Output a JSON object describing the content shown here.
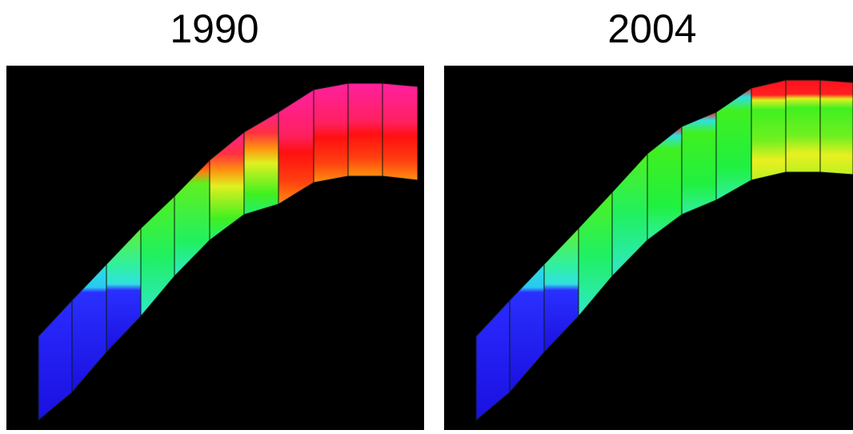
{
  "panels": [
    {
      "title": "1990"
    },
    {
      "title": "2004"
    }
  ]
}
